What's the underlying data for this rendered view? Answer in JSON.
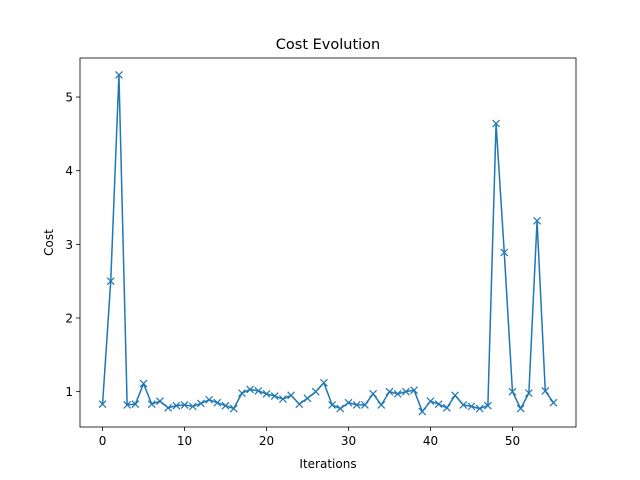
{
  "chart_data": {
    "type": "line",
    "title": "Cost Evolution",
    "xlabel": "Iterations",
    "ylabel": "Cost",
    "xlim": [
      -2.75,
      57.75
    ],
    "ylim": [
      0.52,
      5.53
    ],
    "xticks": [
      0,
      10,
      20,
      30,
      40,
      50
    ],
    "yticks": [
      1,
      2,
      3,
      4,
      5
    ],
    "grid": false,
    "marker": "x",
    "color": "#1f77b4",
    "series": [
      {
        "x": [
          0,
          1,
          2,
          3,
          4,
          5,
          6,
          7,
          8,
          9,
          10,
          11,
          12,
          13,
          14,
          15,
          16,
          17,
          18,
          19,
          20,
          21,
          22,
          23,
          24,
          25,
          26,
          27,
          28,
          29,
          30,
          31,
          32,
          33,
          34,
          35,
          36,
          37,
          38,
          39,
          40,
          41,
          42,
          43,
          44,
          45,
          46,
          47,
          48,
          49,
          50,
          51,
          52,
          53,
          54,
          55
        ],
        "values": [
          0.83,
          2.5,
          5.3,
          0.82,
          0.83,
          1.11,
          0.83,
          0.87,
          0.78,
          0.81,
          0.82,
          0.8,
          0.84,
          0.89,
          0.85,
          0.81,
          0.77,
          0.98,
          1.03,
          1.01,
          0.97,
          0.94,
          0.9,
          0.95,
          0.83,
          0.91,
          1.0,
          1.12,
          0.82,
          0.77,
          0.85,
          0.82,
          0.82,
          0.97,
          0.82,
          1.0,
          0.97,
          1.0,
          1.02,
          0.73,
          0.87,
          0.83,
          0.78,
          0.95,
          0.82,
          0.8,
          0.77,
          0.81,
          4.64,
          2.89,
          1.0,
          0.77,
          0.98,
          3.32,
          1.01,
          0.85
        ]
      }
    ]
  }
}
